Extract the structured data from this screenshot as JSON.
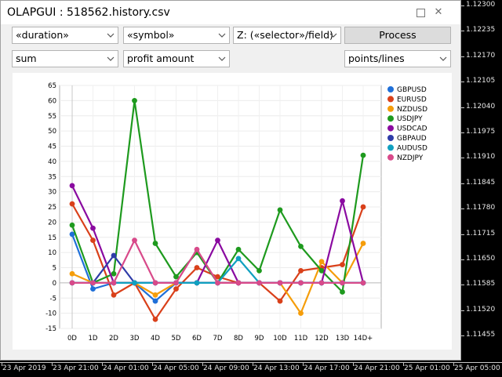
{
  "window": {
    "title": "OLAPGUI : 518562.history.csv"
  },
  "controls": {
    "row1": {
      "x_selector": "«duration»",
      "y_selector": "«symbol»",
      "z_selector": "Z: («selector»/field)",
      "process_button": "Process"
    },
    "row2": {
      "aggregator": "sum",
      "field": "profit amount",
      "chart_type": "points/lines"
    }
  },
  "price_scale": [
    "1.12300",
    "1.12235",
    "1.12170",
    "1.12105",
    "1.12040",
    "1.11975",
    "1.11910",
    "1.11845",
    "1.11780",
    "1.11715",
    "1.11650",
    "1.11585",
    "1.11520",
    "1.11455"
  ],
  "time_scale": [
    "23 Apr 2019",
    "23 Apr 21:00",
    "24 Apr 01:00",
    "24 Apr 05:00",
    "24 Apr 09:00",
    "24 Apr 13:00",
    "24 Apr 17:00",
    "24 Apr 21:00",
    "25 Apr 01:00",
    "25 Apr 05:00"
  ],
  "chart_data": {
    "type": "line",
    "categories": [
      "0D",
      "1D",
      "2D",
      "3D",
      "4D",
      "5D",
      "6D",
      "7D",
      "8D",
      "9D",
      "10D",
      "11D",
      "12D",
      "13D",
      "14D+"
    ],
    "ylim": [
      -15,
      65
    ],
    "yticks": [
      -15,
      -10,
      -5,
      0,
      5,
      10,
      15,
      20,
      25,
      30,
      35,
      40,
      45,
      50,
      55,
      60,
      65
    ],
    "grid": true,
    "legend_position": "right",
    "series": [
      {
        "name": "GBPUSD",
        "color": "#1f6fd8",
        "values": [
          16,
          -2,
          0,
          0,
          -6,
          0,
          0,
          0,
          0,
          0,
          0,
          0,
          0,
          0,
          0
        ]
      },
      {
        "name": "EURUSD",
        "color": "#d9401a",
        "values": [
          26,
          14,
          -4,
          0,
          -12,
          -2,
          5,
          2,
          0,
          0,
          -6,
          4,
          5,
          6,
          25
        ]
      },
      {
        "name": "NZDUSD",
        "color": "#f59d0a",
        "values": [
          3,
          0,
          0,
          0,
          -4,
          0,
          0,
          0,
          0,
          0,
          0,
          -10,
          7,
          0,
          13
        ]
      },
      {
        "name": "USDJPY",
        "color": "#1e9a1e",
        "values": [
          19,
          0,
          3,
          60,
          13,
          2,
          10,
          0,
          11,
          4,
          24,
          12,
          4,
          -3,
          42
        ]
      },
      {
        "name": "USDCAD",
        "color": "#8a0aa0",
        "values": [
          32,
          18,
          0,
          0,
          0,
          0,
          0,
          14,
          0,
          0,
          0,
          0,
          0,
          27,
          0
        ]
      },
      {
        "name": "GBPAUD",
        "color": "#2e3ca8",
        "values": [
          0,
          0,
          9,
          0,
          0,
          0,
          0,
          0,
          0,
          0,
          0,
          0,
          0,
          0,
          0
        ]
      },
      {
        "name": "AUDUSD",
        "color": "#10a0c0",
        "values": [
          0,
          0,
          0,
          0,
          0,
          0,
          0,
          0,
          8,
          0,
          0,
          0,
          0,
          0,
          0
        ]
      },
      {
        "name": "NZDJPY",
        "color": "#d84a8a",
        "values": [
          0,
          0,
          0,
          14,
          0,
          0,
          11,
          0,
          0,
          0,
          0,
          0,
          0,
          0,
          0
        ]
      }
    ]
  }
}
